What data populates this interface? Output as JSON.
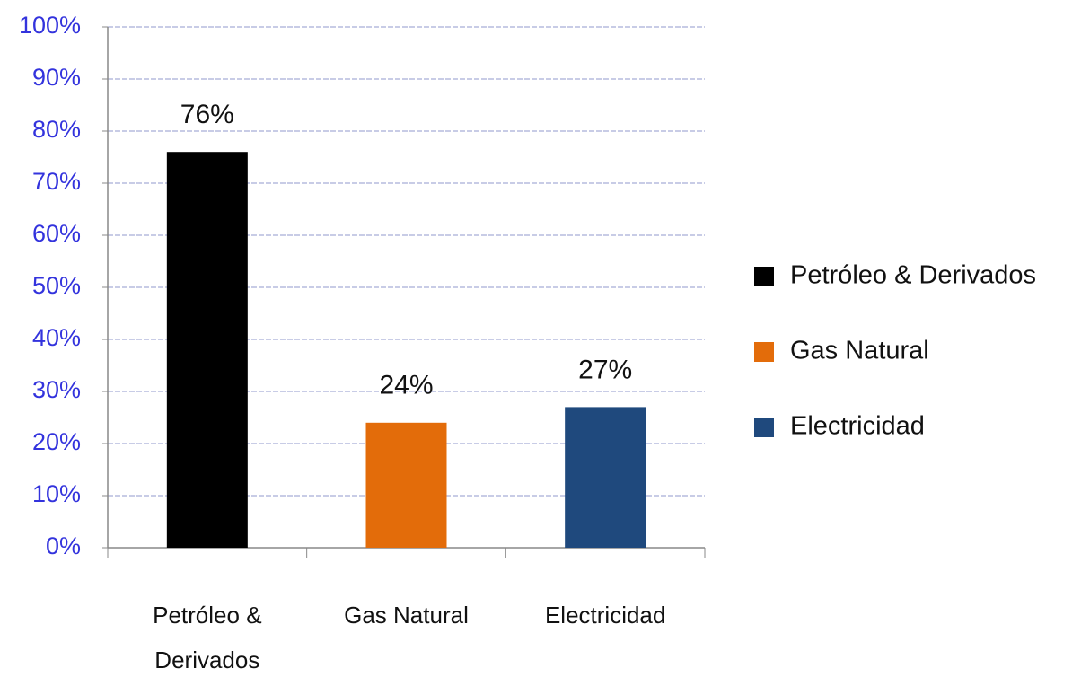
{
  "chart_data": {
    "type": "bar",
    "categories": [
      "Petróleo & Derivados",
      "Gas Natural",
      "Electricidad"
    ],
    "values": [
      76,
      24,
      27
    ],
    "value_labels": [
      "76%",
      "24%",
      "27%"
    ],
    "colors": [
      "#000000",
      "#e36c0a",
      "#1f497d"
    ],
    "ylim": [
      0,
      100
    ],
    "yticks": [
      {
        "value": 0,
        "label": "0%"
      },
      {
        "value": 10,
        "label": "10%"
      },
      {
        "value": 20,
        "label": "20%"
      },
      {
        "value": 30,
        "label": "30%"
      },
      {
        "value": 40,
        "label": "40%"
      },
      {
        "value": 50,
        "label": "50%"
      },
      {
        "value": 60,
        "label": "60%"
      },
      {
        "value": 70,
        "label": "70%"
      },
      {
        "value": 80,
        "label": "80%"
      },
      {
        "value": 90,
        "label": "90%"
      },
      {
        "value": 100,
        "label": "100%"
      }
    ],
    "grid": true,
    "legend": "right"
  }
}
